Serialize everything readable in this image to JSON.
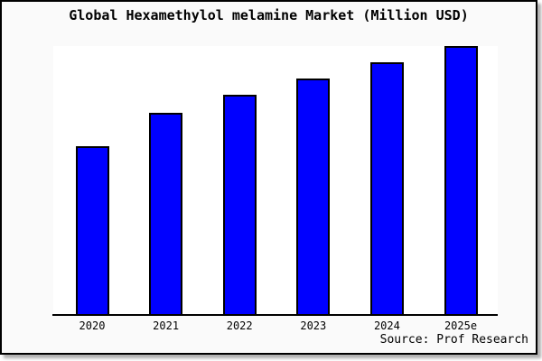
{
  "source_note": "Source: Prof Research",
  "colors": {
    "bar_fill": "#0000ff",
    "bar_border": "#000000",
    "plot_background": "#ffffff",
    "card_background": "#fafafa",
    "card_border": "#000000",
    "axis": "#000000",
    "text": "#000000"
  },
  "chart_data": {
    "type": "bar",
    "title": "Global Hexamethylol melamine Market (Million USD)",
    "categories": [
      "2020",
      "2021",
      "2022",
      "2023",
      "2024",
      "2025e"
    ],
    "values": [
      62.9,
      75.3,
      81.9,
      88.0,
      94.0,
      100.0
    ],
    "xlabel": "",
    "ylabel": "",
    "ylim": [
      0,
      100
    ],
    "value_scale": "relative, normalized to 2025e = 100 (chart shows no y-axis tick labels or value labels)",
    "grid": false,
    "legend": false,
    "y_axis_visible": false,
    "bar_count": 6
  }
}
